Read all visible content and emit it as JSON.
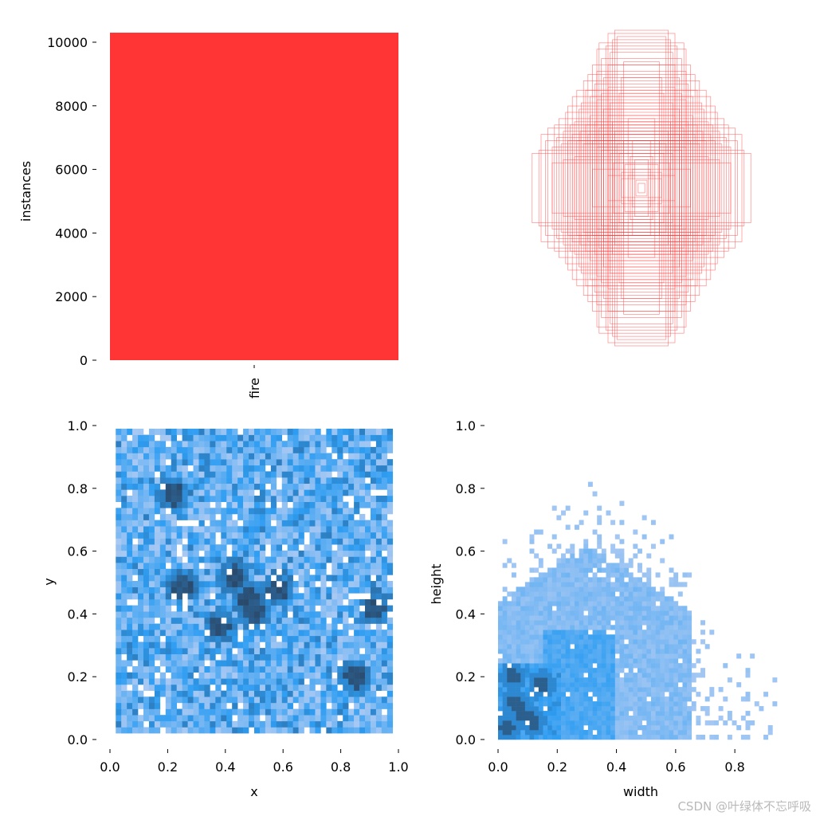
{
  "colors": {
    "bar": "#ff3535",
    "box_stroke": "#ff3b3b",
    "hist_light": "#a9c9f3",
    "hist_mid": "#2e9df2",
    "hist_dark": "#2a4a6c",
    "axis": "#000000"
  },
  "watermark": "CSDN @叶绿体不忘呼吸",
  "chart_data": [
    {
      "id": "class-instances",
      "type": "bar",
      "categories": [
        "fire"
      ],
      "values": [
        10300
      ],
      "title": "",
      "xlabel": "",
      "ylabel": "instances",
      "ylim": [
        0,
        10300
      ],
      "yticks": [
        0,
        2000,
        4000,
        6000,
        8000,
        10000
      ],
      "ytick_labels": [
        "0",
        "2000",
        "4000",
        "6000",
        "8000",
        "10000"
      ],
      "grid": false
    },
    {
      "id": "box-overlay",
      "type": "scatter",
      "title": "",
      "description_kind": "centered label rectangles (width, height as fraction of image)",
      "boxes": [
        [
          0.05,
          0.05
        ],
        [
          0.08,
          0.12
        ],
        [
          0.12,
          0.08
        ],
        [
          0.15,
          0.15
        ],
        [
          0.18,
          0.1
        ],
        [
          0.1,
          0.2
        ],
        [
          0.2,
          0.22
        ],
        [
          0.25,
          0.16
        ],
        [
          0.16,
          0.3
        ],
        [
          0.22,
          0.28
        ],
        [
          0.28,
          0.22
        ],
        [
          0.3,
          0.3
        ],
        [
          0.24,
          0.36
        ],
        [
          0.36,
          0.24
        ],
        [
          0.34,
          0.34
        ],
        [
          0.4,
          0.26
        ],
        [
          0.26,
          0.42
        ],
        [
          0.38,
          0.38
        ],
        [
          0.44,
          0.3
        ],
        [
          0.3,
          0.46
        ],
        [
          0.42,
          0.42
        ],
        [
          0.48,
          0.34
        ],
        [
          0.34,
          0.5
        ],
        [
          0.46,
          0.46
        ],
        [
          0.52,
          0.28
        ],
        [
          0.28,
          0.54
        ],
        [
          0.5,
          0.4
        ],
        [
          0.4,
          0.56
        ],
        [
          0.55,
          0.36
        ],
        [
          0.36,
          0.6
        ],
        [
          0.58,
          0.3
        ],
        [
          0.3,
          0.64
        ],
        [
          0.6,
          0.42
        ],
        [
          0.42,
          0.66
        ],
        [
          0.62,
          0.34
        ],
        [
          0.34,
          0.7
        ],
        [
          0.64,
          0.4
        ],
        [
          0.4,
          0.74
        ],
        [
          0.66,
          0.3
        ],
        [
          0.3,
          0.78
        ],
        [
          0.7,
          0.36
        ],
        [
          0.36,
          0.82
        ],
        [
          0.72,
          0.28
        ],
        [
          0.28,
          0.86
        ],
        [
          0.76,
          0.32
        ],
        [
          0.32,
          0.9
        ],
        [
          0.8,
          0.26
        ],
        [
          0.26,
          0.94
        ],
        [
          0.86,
          0.3
        ],
        [
          0.3,
          0.98
        ],
        [
          0.92,
          0.24
        ],
        [
          0.24,
          1.0
        ],
        [
          0.98,
          0.22
        ],
        [
          0.22,
          0.96
        ],
        [
          0.56,
          0.5
        ],
        [
          0.5,
          0.62
        ],
        [
          0.46,
          0.58
        ],
        [
          0.68,
          0.48
        ],
        [
          0.48,
          0.72
        ],
        [
          0.74,
          0.44
        ],
        [
          0.44,
          0.78
        ],
        [
          0.78,
          0.4
        ],
        [
          0.4,
          0.88
        ],
        [
          0.84,
          0.38
        ],
        [
          0.38,
          0.92
        ],
        [
          0.9,
          0.34
        ],
        [
          0.2,
          0.6
        ],
        [
          0.6,
          0.2
        ],
        [
          0.18,
          0.7
        ],
        [
          0.7,
          0.18
        ],
        [
          0.16,
          0.8
        ],
        [
          0.8,
          0.16
        ],
        [
          0.54,
          0.54
        ],
        [
          0.62,
          0.58
        ],
        [
          0.58,
          0.62
        ],
        [
          0.66,
          0.52
        ],
        [
          0.52,
          0.68
        ],
        [
          0.12,
          0.44
        ],
        [
          0.44,
          0.12
        ],
        [
          0.08,
          0.3
        ],
        [
          0.3,
          0.08
        ],
        [
          0.06,
          0.18
        ],
        [
          0.18,
          0.06
        ],
        [
          0.03,
          0.03
        ]
      ]
    },
    {
      "id": "xy-histogram",
      "type": "heatmap",
      "title": "",
      "xlabel": "x",
      "ylabel": "y",
      "xlim": [
        0.0,
        1.0
      ],
      "ylim": [
        0.0,
        1.0
      ],
      "xticks": [
        0.0,
        0.2,
        0.4,
        0.6,
        0.8,
        1.0
      ],
      "yticks": [
        0.0,
        0.2,
        0.4,
        0.6,
        0.8,
        1.0
      ],
      "xtick_labels": [
        "0.0",
        "0.2",
        "0.4",
        "0.6",
        "0.8",
        "1.0"
      ],
      "ytick_labels": [
        "0.0",
        "0.2",
        "0.4",
        "0.6",
        "0.8",
        "1.0"
      ],
      "bins": 50,
      "data_extent": [
        0.02,
        0.02,
        0.98,
        0.99
      ],
      "dense_spots": [
        [
          0.25,
          0.49
        ],
        [
          0.22,
          0.78
        ],
        [
          0.43,
          0.52
        ],
        [
          0.48,
          0.45
        ],
        [
          0.5,
          0.4
        ],
        [
          0.58,
          0.48
        ],
        [
          0.92,
          0.42
        ],
        [
          0.85,
          0.2
        ],
        [
          0.38,
          0.36
        ]
      ]
    },
    {
      "id": "wh-histogram",
      "type": "heatmap",
      "title": "",
      "xlabel": "width",
      "ylabel": "height",
      "xlim": [
        0.0,
        0.98
      ],
      "ylim": [
        0.0,
        1.0
      ],
      "xticks": [
        0.0,
        0.2,
        0.4,
        0.6,
        0.8
      ],
      "yticks": [
        0.0,
        0.2,
        0.4,
        0.6,
        0.8,
        1.0
      ],
      "xtick_labels": [
        "0.0",
        "0.2",
        "0.4",
        "0.6",
        "0.8"
      ],
      "ytick_labels": [
        "0.0",
        "0.2",
        "0.4",
        "0.6",
        "0.8",
        "1.0"
      ],
      "bins": 50,
      "dense_spots": [
        [
          0.03,
          0.04
        ],
        [
          0.06,
          0.12
        ],
        [
          0.08,
          0.08
        ],
        [
          0.12,
          0.06
        ],
        [
          0.15,
          0.18
        ],
        [
          0.05,
          0.2
        ]
      ]
    }
  ]
}
